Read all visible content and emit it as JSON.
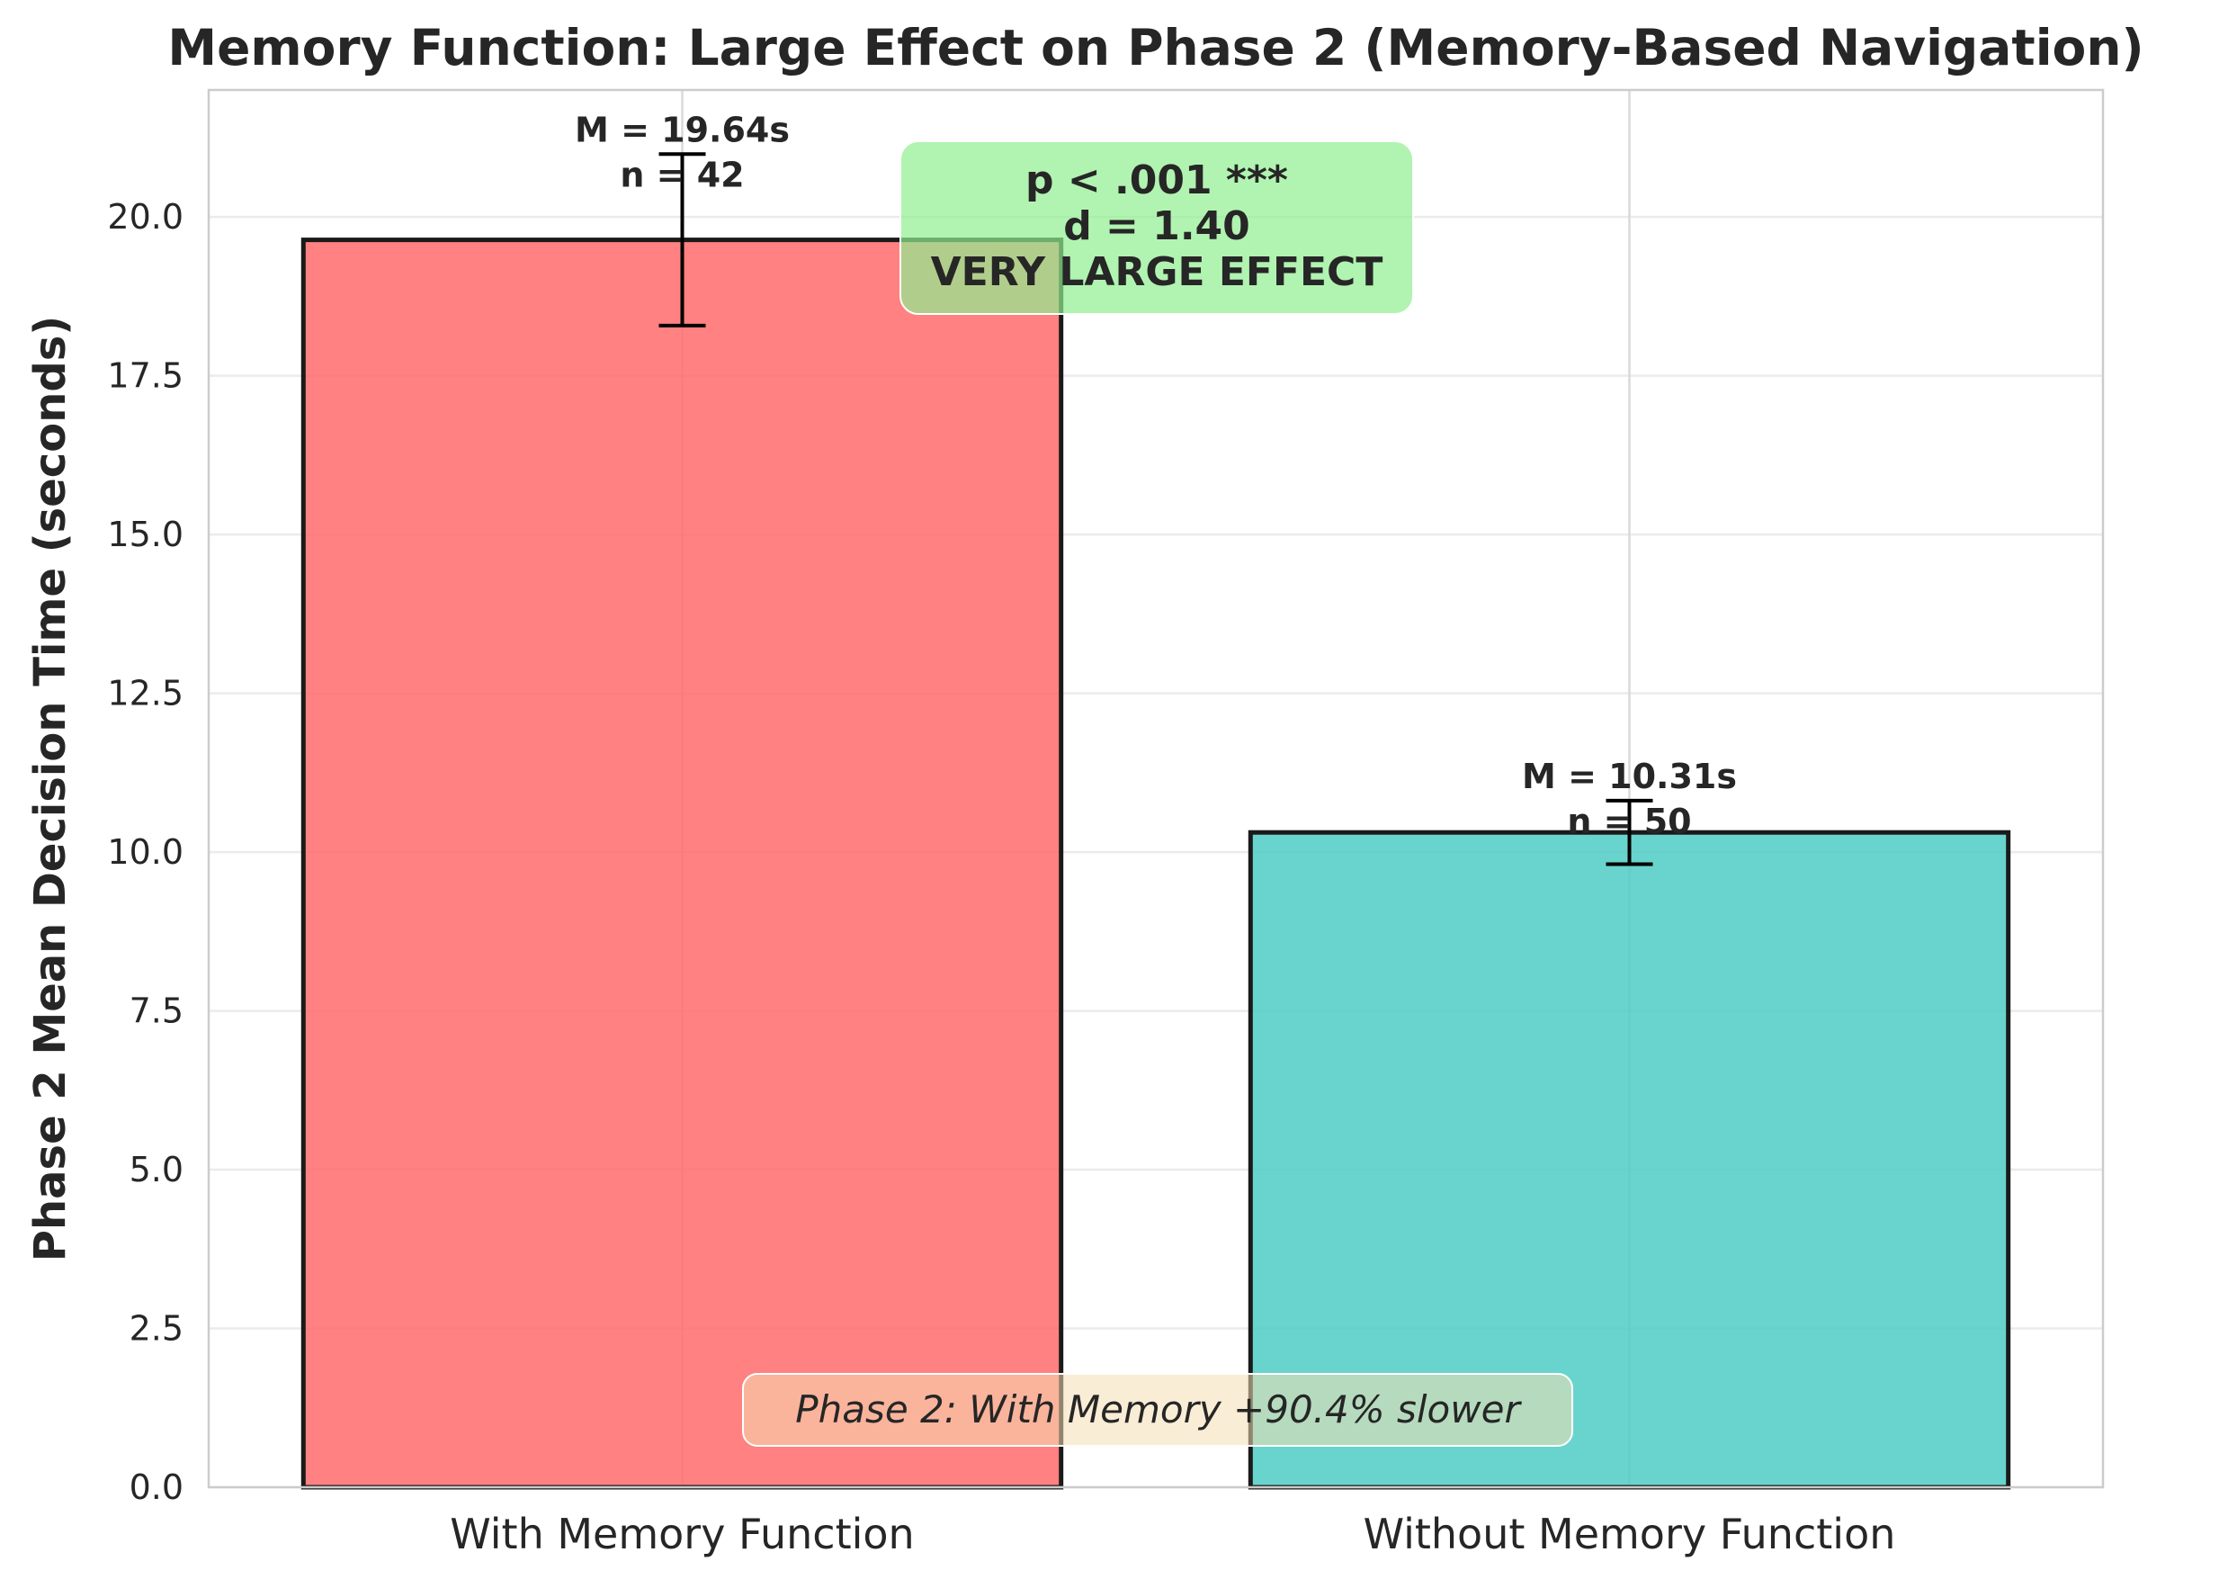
{
  "chart_data": {
    "type": "bar",
    "title": "Memory Function: Large Effect on Phase 2 (Memory-Based Navigation)",
    "xlabel": "",
    "ylabel": "Phase 2 Mean Decision Time (seconds)",
    "ylim": [
      0,
      22
    ],
    "yticks": [
      "0.0",
      "2.5",
      "5.0",
      "7.5",
      "10.0",
      "12.5",
      "15.0",
      "17.5",
      "20.0"
    ],
    "grid": true,
    "categories": [
      "With Memory Function",
      "Without Memory Function"
    ],
    "values": [
      19.64,
      10.31
    ],
    "errors": [
      1.35,
      0.5
    ],
    "colors": [
      "#ff6b6b",
      "#4ecdc4"
    ],
    "bar_labels": [
      {
        "mean": "M = 19.64s",
        "n": "n = 42"
      },
      {
        "mean": "M = 10.31s",
        "n": "n = 50"
      }
    ],
    "stats_box": {
      "lines": [
        "p < .001 ***",
        "d = 1.40",
        "VERY LARGE EFFECT"
      ],
      "color": "#90ee90"
    },
    "note": {
      "text": "Phase 2: With Memory +90.4% slower",
      "color": "#f5deb3"
    }
  }
}
